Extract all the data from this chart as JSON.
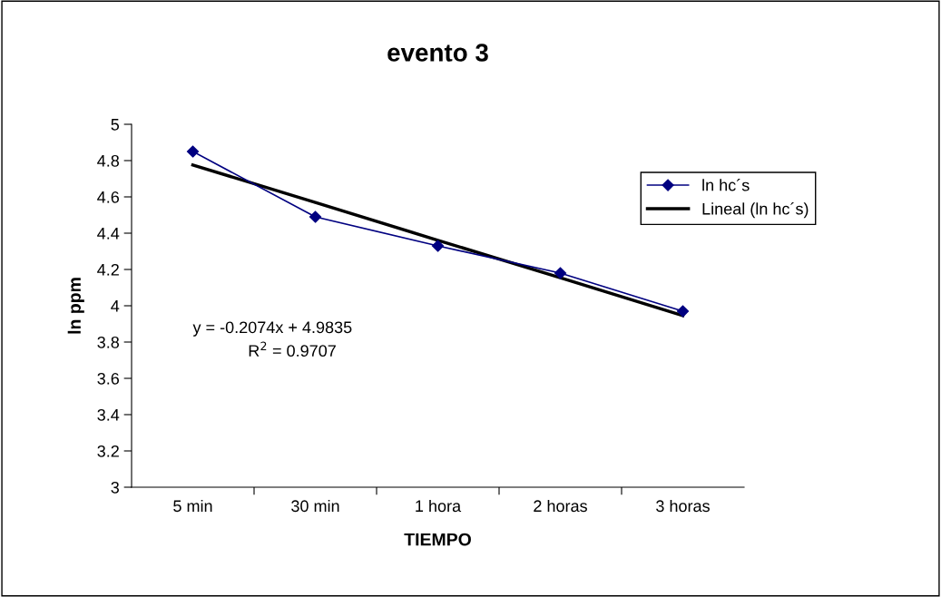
{
  "chart_data": {
    "type": "line",
    "title": "evento 3",
    "xlabel": "TIEMPO",
    "ylabel": "ln ppm",
    "categories": [
      "5 min",
      "30 min",
      "1 hora",
      "2 horas",
      "3 horas"
    ],
    "series": [
      {
        "name": "ln hc´s",
        "color": "#000080",
        "values": [
          4.85,
          4.49,
          4.33,
          4.18,
          3.97
        ],
        "marker": "diamond"
      },
      {
        "name": "Lineal (ln hc´s)",
        "color": "#000000",
        "values": [
          4.776,
          4.569,
          4.361,
          4.154,
          3.946
        ],
        "marker": "none"
      }
    ],
    "ylim": [
      3,
      5
    ],
    "yticks": [
      3,
      3.2,
      3.4,
      3.6,
      3.8,
      4,
      4.2,
      4.4,
      4.6,
      4.8,
      5
    ],
    "grid": false,
    "legend": "top right",
    "annotations": [
      "y = -0.2074x + 4.9835",
      "R$^{2}$ = 0.9707"
    ]
  }
}
